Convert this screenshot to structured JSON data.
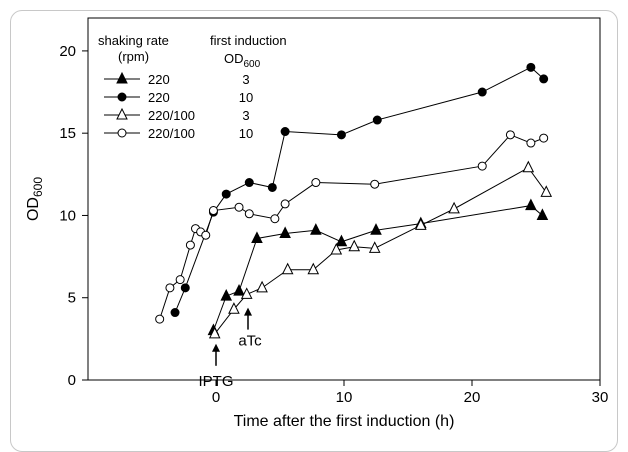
{
  "chart_data": {
    "type": "line",
    "xlabel": "Time after the first induction (h)",
    "ylabel": "OD600",
    "ylabel_main": "OD",
    "ylabel_sub": "600",
    "xlim": [
      -10,
      30
    ],
    "ylim": [
      0,
      22
    ],
    "xticks": [
      0,
      10,
      20,
      30
    ],
    "yticks": [
      0,
      5,
      10,
      15,
      20
    ],
    "legend": {
      "header_col1_line1": "shaking rate",
      "header_col1_line2": "(rpm)",
      "header_col2_line1": "first induction",
      "header_col2_line2_main": "OD",
      "header_col2_line2_sub": "600",
      "placement": "top-left"
    },
    "series": [
      {
        "name": "220",
        "first_induction_od": "3",
        "marker": "triangle-filled",
        "x": [
          -0.2,
          0.8,
          1.8,
          3.2,
          5.4,
          7.8,
          9.8,
          12.5,
          16.0,
          24.6,
          25.5
        ],
        "y": [
          3.0,
          5.1,
          5.4,
          8.6,
          8.9,
          9.1,
          8.4,
          9.1,
          9.5,
          10.6,
          10.0
        ]
      },
      {
        "name": "220",
        "first_induction_od": "10",
        "marker": "circle-filled",
        "x": [
          -3.2,
          -2.4,
          -0.2,
          0.8,
          2.6,
          4.4,
          5.4,
          9.8,
          12.6,
          20.8,
          24.6,
          25.6
        ],
        "y": [
          4.1,
          5.6,
          10.2,
          11.3,
          12.0,
          11.7,
          15.1,
          14.9,
          15.8,
          17.5,
          19.0,
          18.3
        ]
      },
      {
        "name": "220/100",
        "first_induction_od": "3",
        "marker": "triangle-open",
        "x": [
          -0.1,
          1.4,
          2.4,
          3.6,
          5.6,
          7.6,
          9.4,
          10.8,
          12.4,
          16.0,
          18.6,
          24.4,
          25.8
        ],
        "y": [
          2.8,
          4.3,
          5.2,
          5.6,
          6.7,
          6.7,
          7.9,
          8.1,
          8.0,
          9.4,
          10.4,
          12.9,
          11.4
        ]
      },
      {
        "name": "220/100",
        "first_induction_od": "10",
        "marker": "circle-open",
        "x": [
          -4.4,
          -3.6,
          -2.8,
          -2.0,
          -1.6,
          -1.2,
          -0.8,
          -0.2,
          1.8,
          2.6,
          4.6,
          5.4,
          7.8,
          12.4,
          20.8,
          23.0,
          24.6,
          25.6
        ],
        "y": [
          3.7,
          5.6,
          6.1,
          8.2,
          9.2,
          9.0,
          8.8,
          10.3,
          10.5,
          10.1,
          9.8,
          10.7,
          12.0,
          11.9,
          13.0,
          14.9,
          14.4,
          14.7
        ]
      }
    ],
    "annotations": [
      {
        "text": "IPTG",
        "x": 0,
        "y": 2.2
      },
      {
        "text": "aTc",
        "x": 2.5,
        "y": 4.4
      }
    ]
  }
}
